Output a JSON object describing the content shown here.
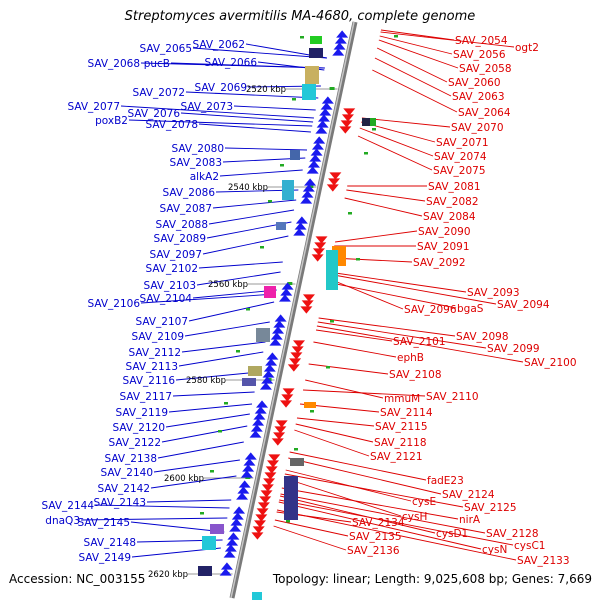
{
  "title": "Streptomyces avermitilis MA-4680, complete genome",
  "footer": {
    "accession": "Accession: NC_003155",
    "summary": "Topology: linear; Length: 9,025,608 bp; Genes: 7,669"
  },
  "colors": {
    "left_labels": "#0000cc",
    "right_labels": "#dd0000",
    "backbone": "#888888",
    "kbp_tick": "#22aa22"
  },
  "kbp_labels": [
    "2520 kbp",
    "2540 kbp",
    "2560 kbp",
    "2580 kbp",
    "2600 kbp",
    "2620 kbp"
  ],
  "left_genes": [
    "SAV_2065",
    "SAV_2062",
    "pucB",
    "SAV_2066",
    "SAV_2068",
    "SAV_2069",
    "SAV_2072",
    "SAV_2073",
    "SAV_2077",
    "SAV_2076",
    "poxB2",
    "SAV_2078",
    "SAV_2080",
    "SAV_2083",
    "alkA2",
    "SAV_2086",
    "SAV_2087",
    "SAV_2088",
    "SAV_2089",
    "SAV_2097",
    "SAV_2102",
    "SAV_2103",
    "SAV_2104",
    "SAV_2106",
    "SAV_2107",
    "SAV_2109",
    "SAV_2112",
    "SAV_2113",
    "SAV_2116",
    "SAV_2117",
    "SAV_2119",
    "SAV_2120",
    "SAV_2122",
    "SAV_2138",
    "SAV_2140",
    "SAV_2142",
    "SAV_2143",
    "SAV_2144",
    "dnaQ3",
    "SAV_2145",
    "SAV_2148",
    "SAV_2149"
  ],
  "right_genes": [
    "SAV_2054",
    "ogt2",
    "SAV_2056",
    "SAV_2058",
    "SAV_2060",
    "SAV_2063",
    "SAV_2064",
    "SAV_2070",
    "SAV_2071",
    "SAV_2074",
    "SAV_2075",
    "SAV_2081",
    "SAV_2082",
    "SAV_2084",
    "SAV_2090",
    "SAV_2091",
    "SAV_2092",
    "SAV_2093",
    "SAV_2094",
    "SAV_2096",
    "bgaS",
    "SAV_2098",
    "SAV_2099",
    "SAV_2100",
    "SAV_2101",
    "ephB",
    "SAV_2108",
    "mmuM",
    "SAV_2110",
    "SAV_2114",
    "SAV_2115",
    "SAV_2118",
    "SAV_2121",
    "fadE23",
    "SAV_2124",
    "cysE",
    "SAV_2125",
    "cysH",
    "nirA",
    "SAV_2128",
    "cysD1",
    "cysC1",
    "cysN",
    "SAV_2133",
    "SAV_2134",
    "SAV_2135",
    "SAV_2136"
  ]
}
